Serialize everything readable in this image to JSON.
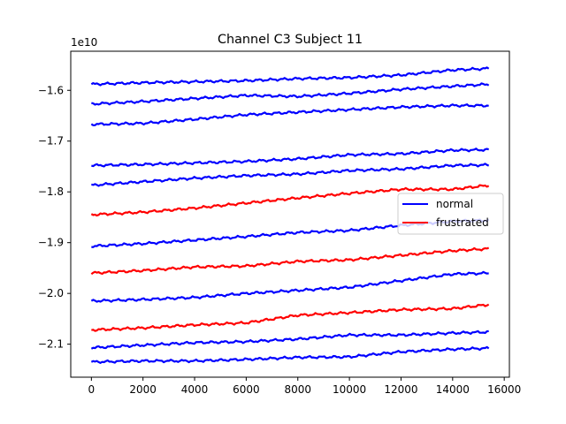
{
  "chart_data": {
    "type": "line",
    "title": "Channel C3 Subject 11",
    "xlabel": "",
    "ylabel": "",
    "offset_text": "1e10",
    "xlim": [
      -800,
      16200
    ],
    "ylim": [
      -2.165,
      -1.523
    ],
    "y_scale_factor": 10000000000.0,
    "xticks": [
      0,
      2000,
      4000,
      6000,
      8000,
      10000,
      12000,
      14000,
      16000
    ],
    "xtick_labels": [
      "0",
      "2000",
      "4000",
      "6000",
      "8000",
      "10000",
      "12000",
      "14000",
      "16000"
    ],
    "yticks": [
      -2.1,
      -2.0,
      -1.9,
      -1.8,
      -1.7,
      -1.6
    ],
    "ytick_labels": [
      "−2.1",
      "−2.0",
      "−1.9",
      "−1.8",
      "−1.7",
      "−1.6"
    ],
    "grid": false,
    "legend": {
      "location": "center-right",
      "entries": [
        {
          "label": "normal",
          "color": "#0000ff"
        },
        {
          "label": "frustrated",
          "color": "#ff0000"
        }
      ]
    },
    "series": [
      {
        "class": "normal",
        "color": "#0000ff",
        "x": [
          0,
          2000,
          4000,
          6000,
          8000,
          10000,
          12000,
          14000,
          15400
        ],
        "y": [
          -1.588,
          -1.585,
          -1.583,
          -1.581,
          -1.577,
          -1.575,
          -1.57,
          -1.56,
          -1.557
        ]
      },
      {
        "class": "normal",
        "color": "#0000ff",
        "x": [
          0,
          2000,
          4000,
          6000,
          8000,
          10000,
          12000,
          14000,
          15400
        ],
        "y": [
          -1.627,
          -1.622,
          -1.616,
          -1.61,
          -1.612,
          -1.606,
          -1.598,
          -1.592,
          -1.588
        ]
      },
      {
        "class": "normal",
        "color": "#0000ff",
        "x": [
          0,
          2000,
          4000,
          6000,
          8000,
          10000,
          12000,
          14000,
          15400
        ],
        "y": [
          -1.667,
          -1.665,
          -1.657,
          -1.648,
          -1.643,
          -1.638,
          -1.633,
          -1.63,
          -1.63
        ]
      },
      {
        "class": "normal",
        "color": "#0000ff",
        "x": [
          0,
          2000,
          4000,
          6000,
          8000,
          10000,
          12000,
          14000,
          15400
        ],
        "y": [
          -1.748,
          -1.746,
          -1.743,
          -1.74,
          -1.735,
          -1.727,
          -1.725,
          -1.718,
          -1.717
        ]
      },
      {
        "class": "normal",
        "color": "#0000ff",
        "x": [
          0,
          2000,
          4000,
          6000,
          8000,
          10000,
          12000,
          14000,
          15400
        ],
        "y": [
          -1.787,
          -1.78,
          -1.773,
          -1.768,
          -1.765,
          -1.758,
          -1.755,
          -1.748,
          -1.747
        ]
      },
      {
        "class": "frustrated",
        "color": "#ff0000",
        "x": [
          0,
          2000,
          4000,
          6000,
          8000,
          10000,
          12000,
          14000,
          15400
        ],
        "y": [
          -1.845,
          -1.84,
          -1.832,
          -1.822,
          -1.812,
          -1.803,
          -1.795,
          -1.795,
          -1.787
        ]
      },
      {
        "class": "normal",
        "color": "#0000ff",
        "x": [
          0,
          2000,
          4000,
          6000,
          8000,
          10000,
          12000,
          14000,
          15400
        ],
        "y": [
          -1.907,
          -1.902,
          -1.895,
          -1.888,
          -1.88,
          -1.876,
          -1.866,
          -1.858,
          -1.856
        ]
      },
      {
        "class": "frustrated",
        "color": "#ff0000",
        "x": [
          0,
          2000,
          4000,
          6000,
          8000,
          10000,
          12000,
          14000,
          15400
        ],
        "y": [
          -1.96,
          -1.955,
          -1.948,
          -1.946,
          -1.937,
          -1.934,
          -1.925,
          -1.916,
          -1.912
        ]
      },
      {
        "class": "normal",
        "color": "#0000ff",
        "x": [
          0,
          2000,
          4000,
          6000,
          8000,
          10000,
          12000,
          14000,
          15400
        ],
        "y": [
          -2.015,
          -2.012,
          -2.008,
          -2.0,
          -1.994,
          -1.988,
          -1.975,
          -1.962,
          -1.96
        ]
      },
      {
        "class": "frustrated",
        "color": "#ff0000",
        "x": [
          0,
          2000,
          4000,
          6000,
          8000,
          10000,
          12000,
          14000,
          15400
        ],
        "y": [
          -2.072,
          -2.068,
          -2.062,
          -2.058,
          -2.043,
          -2.038,
          -2.032,
          -2.03,
          -2.022
        ]
      },
      {
        "class": "normal",
        "color": "#0000ff",
        "x": [
          0,
          2000,
          4000,
          6000,
          8000,
          10000,
          12000,
          14000,
          15400
        ],
        "y": [
          -2.107,
          -2.102,
          -2.097,
          -2.095,
          -2.09,
          -2.082,
          -2.082,
          -2.078,
          -2.076
        ]
      },
      {
        "class": "normal",
        "color": "#0000ff",
        "x": [
          0,
          2000,
          4000,
          6000,
          8000,
          10000,
          12000,
          14000,
          15400
        ],
        "y": [
          -2.135,
          -2.133,
          -2.133,
          -2.13,
          -2.126,
          -2.125,
          -2.115,
          -2.11,
          -2.108
        ]
      }
    ]
  }
}
